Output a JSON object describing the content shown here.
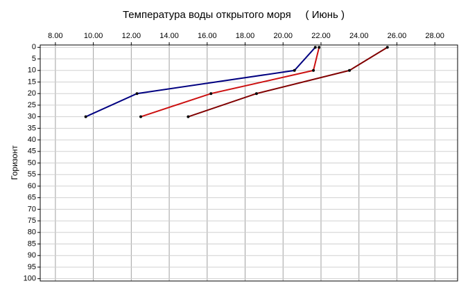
{
  "chart_data": {
    "type": "line",
    "title": "Температура воды открытого моря     ( Июнь )",
    "y_label": "Горизонт",
    "xlim": [
      7.2,
      29.2
    ],
    "xticks": [
      {
        "value": 8,
        "label": "8.00"
      },
      {
        "value": 10,
        "label": "10.00"
      },
      {
        "value": 12,
        "label": "12.00"
      },
      {
        "value": 14,
        "label": "14.00"
      },
      {
        "value": 16,
        "label": "16.00"
      },
      {
        "value": 18,
        "label": "18.00"
      },
      {
        "value": 20,
        "label": "20.00"
      },
      {
        "value": 22,
        "label": "22.00"
      },
      {
        "value": 24,
        "label": "24.00"
      },
      {
        "value": 26,
        "label": "26.00"
      },
      {
        "value": 28,
        "label": "28.00"
      }
    ],
    "x_axis_position": "top",
    "ylim": [
      -1,
      101
    ],
    "y_inverted": true,
    "yticks": [
      0,
      5,
      10,
      15,
      20,
      25,
      30,
      35,
      40,
      45,
      50,
      55,
      60,
      65,
      70,
      75,
      80,
      85,
      90,
      95,
      100
    ],
    "grid": true,
    "series": [
      {
        "color": "#000080",
        "x": [
          21.7,
          20.6,
          12.3,
          9.6
        ],
        "values": [
          0,
          10,
          20,
          30
        ]
      },
      {
        "color": "#cc1010",
        "x": [
          21.9,
          21.6,
          16.2,
          12.5
        ],
        "values": [
          0,
          10,
          20,
          30
        ]
      },
      {
        "color": "#800000",
        "x": [
          25.5,
          23.5,
          18.6,
          15.0
        ],
        "values": [
          0,
          10,
          20,
          30
        ]
      }
    ]
  }
}
